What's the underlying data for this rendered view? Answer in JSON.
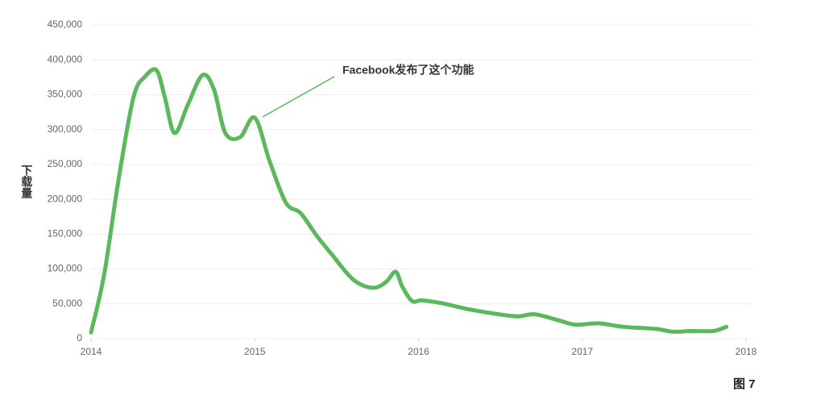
{
  "chart_data": {
    "type": "line",
    "y_label": "下载量",
    "annotation": "Facebook发布了这个功能",
    "figure_label": "图 7",
    "x": [
      2014.0,
      2014.08,
      2014.17,
      2014.26,
      2014.33,
      2014.4,
      2014.45,
      2014.51,
      2014.59,
      2014.68,
      2014.75,
      2014.82,
      2014.91,
      2015.0,
      2015.09,
      2015.19,
      2015.28,
      2015.38,
      2015.47,
      2015.6,
      2015.72,
      2015.8,
      2015.86,
      2015.9,
      2015.96,
      2016.02,
      2016.14,
      2016.31,
      2016.49,
      2016.61,
      2016.71,
      2016.86,
      2016.96,
      2017.1,
      2017.25,
      2017.45,
      2017.55,
      2017.67,
      2017.8,
      2017.88
    ],
    "series": [
      {
        "color": "#5cb85c",
        "values": [
          9000,
          92000,
          231000,
          347000,
          376000,
          385000,
          347000,
          295000,
          335000,
          378000,
          358000,
          295000,
          289000,
          317000,
          255000,
          195000,
          180000,
          147000,
          121000,
          85000,
          73000,
          81000,
          96000,
          75000,
          54000,
          55000,
          51000,
          42000,
          35000,
          32000,
          35000,
          26000,
          20000,
          22000,
          17000,
          14000,
          10000,
          11000,
          11000,
          17000
        ]
      }
    ],
    "xlim": [
      2014,
      2018
    ],
    "xticks": [
      2014,
      2015,
      2016,
      2017,
      2018
    ],
    "ylim": [
      0,
      450000
    ],
    "yticks": [
      0,
      {
        "value": 50000,
        "label": "50,000"
      },
      {
        "value": 100000,
        "label": "100,000"
      },
      {
        "value": 150000,
        "label": "150,000"
      },
      {
        "value": 200000,
        "label": "200,000"
      },
      {
        "value": 250000,
        "label": "250,000"
      },
      {
        "value": 300000,
        "label": "300,000"
      },
      {
        "value": 350000,
        "label": "350,000"
      },
      {
        "value": 400000,
        "label": "400,000"
      },
      {
        "value": 450000,
        "label": "450,000"
      }
    ],
    "grid": true
  }
}
